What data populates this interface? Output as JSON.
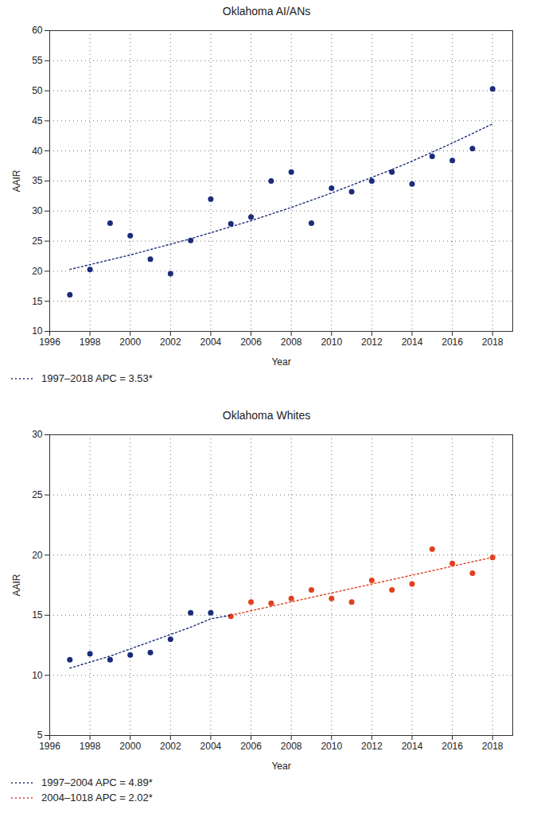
{
  "chart_data": [
    {
      "type": "scatter",
      "title": "Oklahoma AI/ANs",
      "x_label": "Year",
      "y_label": "AAIR",
      "x": [
        1997,
        1998,
        1999,
        2000,
        2001,
        2002,
        2003,
        2004,
        2005,
        2006,
        2007,
        2008,
        2009,
        2010,
        2011,
        2012,
        2013,
        2014,
        2015,
        2016,
        2017,
        2018
      ],
      "series": [
        {
          "type": "scatter",
          "marker": "circle",
          "color": "#1b2c7a",
          "values": [
            16.1,
            20.3,
            28.0,
            25.9,
            22.0,
            19.6,
            25.1,
            32.0,
            27.9,
            29.0,
            35.0,
            36.5,
            28.0,
            33.8,
            33.2,
            35.0,
            36.5,
            34.5,
            39.1,
            38.4,
            40.4,
            50.3
          ]
        },
        {
          "type": "line",
          "name": "1997–2018 APC = 3.53*",
          "line_style": "dotted",
          "color": "#1b2c7a",
          "values": [
            20.3,
            21.1,
            21.9,
            22.7,
            23.6,
            24.5,
            25.4,
            26.4,
            27.4,
            28.4,
            29.5,
            30.6,
            31.8,
            33.0,
            34.3,
            35.6,
            36.9,
            38.3,
            39.8,
            41.3,
            42.9,
            44.5
          ]
        }
      ],
      "xlim": [
        1996,
        2019
      ],
      "xticks": [
        1996,
        1998,
        2000,
        2002,
        2004,
        2006,
        2008,
        2010,
        2012,
        2014,
        2016,
        2018
      ],
      "ylim": [
        10,
        60
      ],
      "yticks": [
        10,
        15,
        20,
        25,
        30,
        35,
        40,
        45,
        50,
        55,
        60
      ],
      "grid": true
    },
    {
      "type": "scatter",
      "title": "Oklahoma Whites",
      "x_label": "Year",
      "y_label": "AAIR",
      "x": [
        1997,
        1998,
        1999,
        2000,
        2001,
        2002,
        2003,
        2004,
        2005,
        2006,
        2007,
        2008,
        2009,
        2010,
        2011,
        2012,
        2013,
        2014,
        2015,
        2016,
        2017,
        2018
      ],
      "series": [
        {
          "type": "scatter",
          "marker": "circle",
          "color": "#1b2c7a",
          "values": [
            11.3,
            11.8,
            11.3,
            11.7,
            11.9,
            13.0,
            15.2,
            15.2,
            null,
            null,
            null,
            null,
            null,
            null,
            null,
            null,
            null,
            null,
            null,
            null,
            null,
            null
          ]
        },
        {
          "type": "scatter",
          "marker": "circle",
          "color": "#e0401e",
          "values": [
            null,
            null,
            null,
            null,
            null,
            null,
            null,
            null,
            14.9,
            16.1,
            16.0,
            16.4,
            17.1,
            16.4,
            16.1,
            17.9,
            17.1,
            17.6,
            20.5,
            19.3,
            18.5,
            19.8
          ]
        },
        {
          "type": "line",
          "name": "1997–2004 APC = 4.89*",
          "line_style": "dotted",
          "color": "#1b2c7a",
          "values": [
            10.6,
            11.1,
            11.6,
            12.2,
            12.8,
            13.4,
            14.0,
            14.7,
            15.0,
            null,
            null,
            null,
            null,
            null,
            null,
            null,
            null,
            null,
            null,
            null,
            null,
            null
          ]
        },
        {
          "type": "line",
          "name": "2004–1018 APC = 2.02*",
          "line_style": "dotted",
          "color": "#e0401e",
          "values": [
            null,
            null,
            null,
            null,
            null,
            null,
            null,
            null,
            15.0,
            15.37,
            15.74,
            16.11,
            16.48,
            16.85,
            17.22,
            17.59,
            17.96,
            18.33,
            18.7,
            19.07,
            19.44,
            19.81
          ]
        }
      ],
      "xlim": [
        1996,
        2019
      ],
      "xticks": [
        1996,
        1998,
        2000,
        2002,
        2004,
        2006,
        2008,
        2010,
        2012,
        2014,
        2016,
        2018
      ],
      "ylim": [
        5,
        30
      ],
      "yticks": [
        5,
        10,
        15,
        20,
        25,
        30
      ],
      "grid": true
    }
  ]
}
